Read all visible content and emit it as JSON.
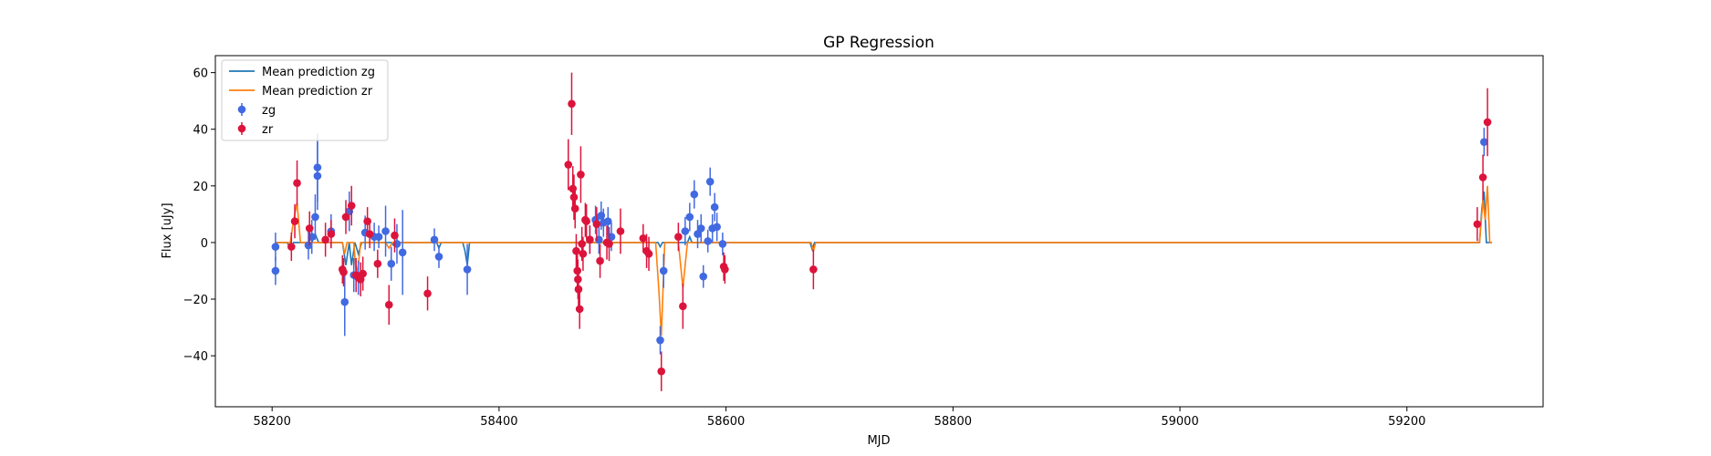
{
  "chart_data": {
    "type": "scatter",
    "title": "GP Regression",
    "xlabel": "MJD",
    "ylabel": "Flux [uJy]",
    "xlim": [
      58150,
      59320
    ],
    "ylim": [
      -58,
      66
    ],
    "x_ticks": [
      58200,
      58400,
      58600,
      58800,
      59000,
      59200
    ],
    "y_ticks": [
      -40,
      -20,
      0,
      20,
      40,
      60
    ],
    "grid": false,
    "legend_position": "top-left",
    "legend": [
      {
        "label": "Mean prediction zg",
        "kind": "line",
        "color": "#1f77b4"
      },
      {
        "label": "Mean prediction zr",
        "kind": "line",
        "color": "#ff7f0e"
      },
      {
        "label": "zg",
        "kind": "errorbar",
        "color": "#4169e1"
      },
      {
        "label": "zr",
        "kind": "errorbar",
        "color": "#dc143c"
      }
    ],
    "series": [
      {
        "name": "zg",
        "color": "#4169e1",
        "points": [
          [
            58203,
            -10,
            5
          ],
          [
            58203,
            -1.5,
            5
          ],
          [
            58232,
            -1,
            5
          ],
          [
            58235,
            2,
            6
          ],
          [
            58238,
            9,
            8
          ],
          [
            58240,
            23.5,
            12
          ],
          [
            58240,
            26.5,
            12
          ],
          [
            58252,
            4,
            6
          ],
          [
            58264,
            -21,
            12
          ],
          [
            58268,
            11,
            7
          ],
          [
            58272,
            -11.5,
            6
          ],
          [
            58276,
            -12.5,
            6
          ],
          [
            58282,
            3.5,
            6
          ],
          [
            58290,
            2,
            5
          ],
          [
            58294,
            2,
            4
          ],
          [
            58300,
            4,
            9
          ],
          [
            58305,
            -7.5,
            6
          ],
          [
            58310,
            -0.5,
            7
          ],
          [
            58315,
            -3.5,
            15
          ],
          [
            58343,
            1,
            4
          ],
          [
            58347,
            -5,
            4
          ],
          [
            58372,
            -9.5,
            9
          ],
          [
            58480,
            1,
            5
          ],
          [
            58485,
            8,
            5
          ],
          [
            58488,
            1,
            5
          ],
          [
            58490,
            9.5,
            5
          ],
          [
            58492,
            7,
            5
          ],
          [
            58496,
            7.5,
            5
          ],
          [
            58499,
            2,
            5
          ],
          [
            58542,
            -34.5,
            5
          ],
          [
            58545,
            -10,
            6
          ],
          [
            58564,
            4,
            5
          ],
          [
            58568,
            9,
            5
          ],
          [
            58572,
            17,
            5
          ],
          [
            58575,
            3,
            5
          ],
          [
            58578,
            5,
            5
          ],
          [
            58580,
            -12,
            4
          ],
          [
            58584,
            0.5,
            4
          ],
          [
            58586,
            21.5,
            5
          ],
          [
            58588,
            5,
            5
          ],
          [
            58590,
            12.5,
            5
          ],
          [
            58592,
            5.5,
            5
          ],
          [
            58597,
            -0.5,
            4
          ],
          [
            59268,
            35.5,
            5
          ]
        ]
      },
      {
        "name": "zr",
        "color": "#dc143c",
        "points": [
          [
            58217,
            -1.5,
            5
          ],
          [
            58220,
            7.5,
            6
          ],
          [
            58222,
            21,
            8
          ],
          [
            58233,
            5,
            6
          ],
          [
            58247,
            1,
            6
          ],
          [
            58252,
            3,
            5
          ],
          [
            58262,
            -9.5,
            5
          ],
          [
            58263,
            -10.5,
            5
          ],
          [
            58265,
            9,
            6
          ],
          [
            58270,
            13,
            7
          ],
          [
            58274,
            -11.5,
            6
          ],
          [
            58278,
            -13,
            6
          ],
          [
            58280,
            -11,
            6
          ],
          [
            58284,
            7.5,
            5
          ],
          [
            58286,
            3,
            5
          ],
          [
            58293,
            -7.5,
            5
          ],
          [
            58303,
            -22,
            7
          ],
          [
            58308,
            2.5,
            6
          ],
          [
            58337,
            -18,
            6
          ],
          [
            58461,
            27.5,
            9
          ],
          [
            58464,
            49,
            11
          ],
          [
            58465,
            19,
            8
          ],
          [
            58466,
            16,
            8
          ],
          [
            58467,
            12,
            7
          ],
          [
            58468,
            -3,
            6
          ],
          [
            58469,
            -10,
            7
          ],
          [
            58469.5,
            -13,
            7
          ],
          [
            58470,
            -16.5,
            7
          ],
          [
            58471,
            -23.5,
            7
          ],
          [
            58472,
            24,
            10
          ],
          [
            58473,
            -0.5,
            6
          ],
          [
            58474,
            -4,
            6
          ],
          [
            58476,
            8,
            6
          ],
          [
            58477,
            7.5,
            6
          ],
          [
            58480,
            1,
            5
          ],
          [
            58486,
            6.5,
            6
          ],
          [
            58489,
            -6.5,
            6
          ],
          [
            58495,
            0,
            6
          ],
          [
            58497,
            -0.5,
            6
          ],
          [
            58507,
            4,
            8
          ],
          [
            58527,
            1.5,
            5
          ],
          [
            58530,
            -3,
            6
          ],
          [
            58532,
            -4,
            6
          ],
          [
            58543,
            -45.5,
            7
          ],
          [
            58558,
            2,
            5
          ],
          [
            58562,
            -22.5,
            8
          ],
          [
            58598,
            -8.5,
            5
          ],
          [
            58599,
            -9.5,
            5
          ],
          [
            58677,
            -9.5,
            7
          ],
          [
            59262,
            6.5,
            6
          ],
          [
            59267,
            23,
            8
          ],
          [
            59271,
            42.5,
            12
          ]
        ]
      }
    ],
    "prediction_lines": [
      {
        "name": "Mean prediction zg",
        "color": "#1f77b4",
        "points": [
          [
            58203,
            0
          ],
          [
            58213,
            0
          ],
          [
            58216,
            -1.5
          ],
          [
            58219,
            0
          ],
          [
            58235,
            0
          ],
          [
            58238,
            3
          ],
          [
            58241,
            0
          ],
          [
            58262,
            0
          ],
          [
            58265,
            -8
          ],
          [
            58268,
            0
          ],
          [
            58270,
            -8
          ],
          [
            58273,
            0
          ],
          [
            58276,
            -4
          ],
          [
            58279,
            0
          ],
          [
            58305,
            0
          ],
          [
            58307,
            -1
          ],
          [
            58309,
            0
          ],
          [
            58345,
            0
          ],
          [
            58347,
            -2
          ],
          [
            58349,
            0
          ],
          [
            58368,
            0
          ],
          [
            58370,
            -3
          ],
          [
            58372,
            -8
          ],
          [
            58374,
            0
          ],
          [
            58540,
            0
          ],
          [
            58542,
            -1.5
          ],
          [
            58544,
            0
          ],
          [
            58566,
            0
          ],
          [
            58568,
            2
          ],
          [
            58570,
            0
          ],
          [
            58590,
            0
          ],
          [
            58596,
            0
          ],
          [
            58598,
            -1
          ],
          [
            58600,
            0
          ],
          [
            58674,
            0
          ],
          [
            58676,
            -2.5
          ],
          [
            58678,
            0
          ],
          [
            59260,
            0
          ],
          [
            59264,
            0
          ],
          [
            59266,
            12
          ],
          [
            59268,
            18
          ],
          [
            59270,
            0
          ],
          [
            59275,
            0
          ]
        ]
      },
      {
        "name": "Mean prediction zr",
        "color": "#ff7f0e",
        "points": [
          [
            58203,
            0
          ],
          [
            58216,
            0
          ],
          [
            58219,
            8
          ],
          [
            58222,
            14
          ],
          [
            58225,
            0
          ],
          [
            58262,
            0
          ],
          [
            58264,
            -4
          ],
          [
            58266,
            0
          ],
          [
            58272,
            0
          ],
          [
            58274,
            -11
          ],
          [
            58276,
            -8
          ],
          [
            58278,
            0
          ],
          [
            58300,
            0
          ],
          [
            58303,
            -2
          ],
          [
            58306,
            0
          ],
          [
            58538,
            0
          ],
          [
            58541,
            -18
          ],
          [
            58543,
            -33
          ],
          [
            58546,
            0
          ],
          [
            58558,
            0
          ],
          [
            58562,
            -16
          ],
          [
            58566,
            0
          ],
          [
            58675,
            0
          ],
          [
            58677,
            -3
          ],
          [
            58679,
            0
          ],
          [
            59260,
            0
          ],
          [
            59264,
            0
          ],
          [
            59267,
            15
          ],
          [
            59269,
            8
          ],
          [
            59271,
            20
          ],
          [
            59273,
            0
          ],
          [
            59275,
            0
          ]
        ]
      }
    ]
  }
}
